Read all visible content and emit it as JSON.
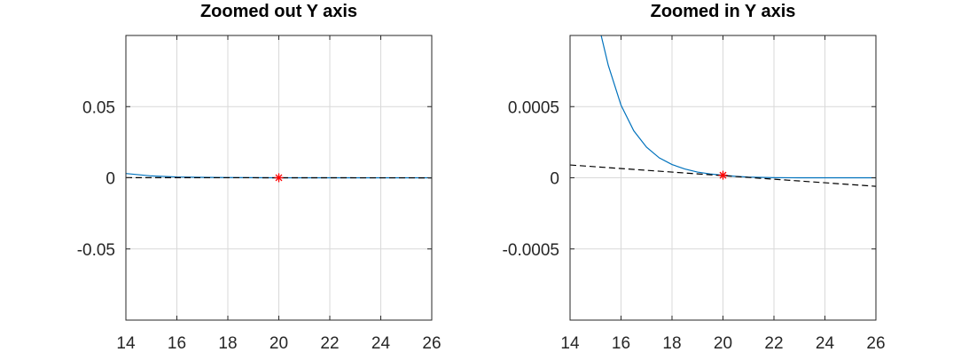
{
  "chart_data": [
    {
      "type": "line",
      "title": "Zoomed out Y axis",
      "xlim": [
        14,
        26
      ],
      "ylim": [
        -0.1,
        0.1
      ],
      "xticks": [
        14,
        16,
        18,
        20,
        22,
        24,
        26
      ],
      "xtick_labels": [
        "14",
        "16",
        "18",
        "20",
        "22",
        "24",
        "26"
      ],
      "yticks": [
        0.05,
        0,
        -0.05
      ],
      "ytick_labels": [
        "0.05",
        "0",
        "-0.05"
      ],
      "grid": true,
      "series": [
        {
          "style": "solid",
          "color": "#0072bd",
          "x": [
            14,
            15,
            16,
            17,
            18,
            19,
            20,
            21,
            22,
            23,
            24,
            25,
            26
          ],
          "y": [
            0.003,
            0.0013,
            0.0006,
            0.00029,
            0.00014,
            6e-05,
            2e-05,
            0.0,
            0.0,
            0.0,
            0.0,
            0.0,
            0.0
          ]
        },
        {
          "style": "dashed",
          "color": "#000000",
          "x": [
            14,
            26
          ],
          "y": [
            9e-05,
            -6e-05
          ]
        }
      ],
      "marker": {
        "x": 20,
        "y": 2e-05,
        "symbol": "asterisk",
        "color": "#ff0000"
      }
    },
    {
      "type": "line",
      "title": "Zoomed in Y axis",
      "xlim": [
        14,
        26
      ],
      "ylim": [
        -0.001,
        0.001
      ],
      "xticks": [
        14,
        16,
        18,
        20,
        22,
        24,
        26
      ],
      "xtick_labels": [
        "14",
        "16",
        "18",
        "20",
        "22",
        "24",
        "26"
      ],
      "yticks": [
        0.0005,
        0,
        -0.0005
      ],
      "ytick_labels": [
        "0.0005",
        "0",
        "-0.0005"
      ],
      "grid": true,
      "series": [
        {
          "style": "solid",
          "color": "#0072bd",
          "x": [
            15.22,
            15.5,
            16,
            16.5,
            17,
            17.5,
            18,
            18.5,
            19,
            19.5,
            20,
            20.5,
            21,
            22,
            23,
            24,
            25,
            26
          ],
          "y": [
            0.001,
            0.00079,
            0.00051,
            0.00033,
            0.000215,
            0.00014,
            9.3e-05,
            6.2e-05,
            4e-05,
            2.7e-05,
            1.8e-05,
            1e-05,
            5e-06,
            1e-06,
            0.0,
            0.0,
            0.0,
            0.0
          ]
        },
        {
          "style": "dashed",
          "color": "#000000",
          "x": [
            14,
            26
          ],
          "y": [
            9e-05,
            -6e-05
          ]
        }
      ],
      "marker": {
        "x": 20,
        "y": 1.8e-05,
        "symbol": "asterisk",
        "color": "#ff0000"
      }
    }
  ]
}
